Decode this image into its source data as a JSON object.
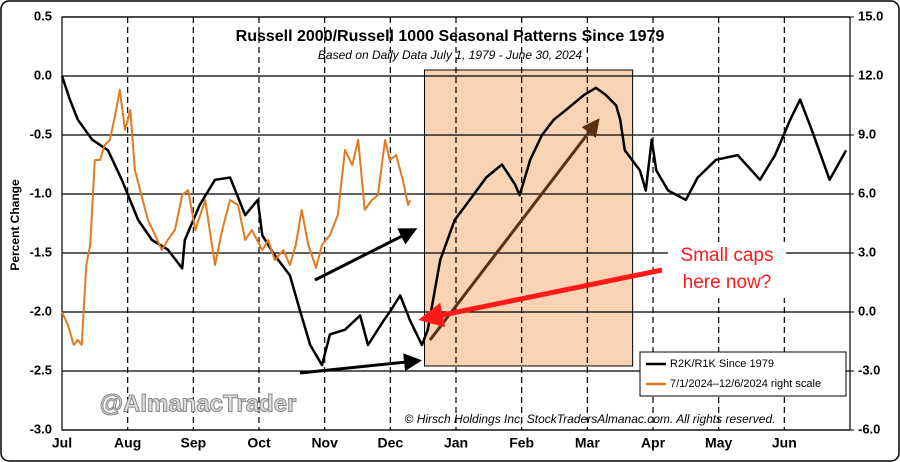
{
  "chart_data": {
    "type": "line",
    "title": "Russell 2000/Russell 1000 Seasonal Patterns Since 1979",
    "subtitle": "Based on Daily Data July 1, 1979 - June 30, 2024",
    "y_label": "Percent Change",
    "annotation": "Small caps here now?",
    "watermark": "@AlmanacTrader",
    "credit": "© Hirsch Holdings Inc, StockTradersAlmanac.com. All rights reserved.",
    "xlim": [
      0,
      12
    ],
    "xticks": [
      {
        "value": 0,
        "label": "Jul"
      },
      {
        "value": 1,
        "label": "Aug"
      },
      {
        "value": 2,
        "label": "Sep"
      },
      {
        "value": 3,
        "label": "Oct"
      },
      {
        "value": 4,
        "label": "Nov"
      },
      {
        "value": 5,
        "label": "Dec"
      },
      {
        "value": 6,
        "label": "Jan"
      },
      {
        "value": 7,
        "label": "Feb"
      },
      {
        "value": 8,
        "label": "Mar"
      },
      {
        "value": 9,
        "label": "Apr"
      },
      {
        "value": 10,
        "label": "May"
      },
      {
        "value": 11,
        "label": "Jun"
      }
    ],
    "ylim": [
      -3.0,
      0.5
    ],
    "yticks": [
      0.5,
      {
        "value": 0,
        "label": "0.0"
      },
      -0.5,
      {
        "value": -1,
        "label": "-1.0"
      },
      -1.5,
      {
        "value": -2,
        "label": "-2.0"
      },
      -2.5,
      {
        "value": -3,
        "label": "-3.0"
      }
    ],
    "y2lim": [
      -6.0,
      15.0
    ],
    "y2ticks": [
      {
        "value": 15,
        "label": "15.0"
      },
      {
        "value": 12,
        "label": "12.0"
      },
      {
        "value": 9,
        "label": "9.0"
      },
      {
        "value": 6,
        "label": "6.0"
      },
      {
        "value": 3,
        "label": "3.0"
      },
      {
        "value": 0,
        "label": "0.0"
      },
      {
        "value": -3,
        "label": "-3.0"
      },
      {
        "value": -6,
        "label": "-6.0"
      }
    ],
    "shaded_x": [
      5.52,
      8.69
    ],
    "grid": true,
    "legend": "lower right",
    "series": [
      {
        "name": "R2K/R1K Since 1979",
        "color": "#000000",
        "axis": "y",
        "x": [
          0,
          0.12,
          0.24,
          0.46,
          0.7,
          0.91,
          1.16,
          1.37,
          1.61,
          1.83,
          1.87,
          2.1,
          2.33,
          2.56,
          2.79,
          2.98,
          3.05,
          3.24,
          3.47,
          3.62,
          3.78,
          3.96,
          4.08,
          4.31,
          4.54,
          4.66,
          4.9,
          4.99,
          5.15,
          5.3,
          5.48,
          5.57,
          5.76,
          5.98,
          6.21,
          6.46,
          6.7,
          6.9,
          6.97,
          7.13,
          7.31,
          7.49,
          7.67,
          7.95,
          8.13,
          8.28,
          8.44,
          8.5,
          8.57,
          8.8,
          8.89,
          8.98,
          9.05,
          9.23,
          9.5,
          9.68,
          9.96,
          10.29,
          10.63,
          10.86,
          11.09,
          11.24,
          11.42,
          11.69,
          11.94
        ],
        "values": [
          0,
          -0.2,
          -0.37,
          -0.54,
          -0.63,
          -0.88,
          -1.22,
          -1.39,
          -1.47,
          -1.63,
          -1.39,
          -1.09,
          -0.88,
          -0.86,
          -1.18,
          -1.05,
          -1.35,
          -1.52,
          -1.69,
          -1.98,
          -2.28,
          -2.45,
          -2.19,
          -2.15,
          -2.03,
          -2.28,
          -2.07,
          -2.0,
          -1.86,
          -2.07,
          -2.28,
          -2.15,
          -1.56,
          -1.22,
          -1.05,
          -0.86,
          -0.75,
          -0.92,
          -1.01,
          -0.71,
          -0.5,
          -0.37,
          -0.29,
          -0.16,
          -0.1,
          -0.16,
          -0.25,
          -0.37,
          -0.63,
          -0.8,
          -0.97,
          -0.54,
          -0.8,
          -0.97,
          -1.05,
          -0.86,
          -0.71,
          -0.67,
          -0.88,
          -0.67,
          -0.37,
          -0.2,
          -0.46,
          -0.88,
          -0.63
        ]
      },
      {
        "name": "7/1/2024–12/6/2024 right scale",
        "color": "#e07b20",
        "axis": "y2",
        "x": [
          0,
          0.09,
          0.18,
          0.24,
          0.3,
          0.37,
          0.43,
          0.5,
          0.58,
          0.65,
          0.73,
          0.81,
          0.88,
          0.96,
          1.04,
          1.11,
          1.19,
          1.31,
          1.42,
          1.52,
          1.61,
          1.72,
          1.83,
          1.92,
          2.03,
          2.18,
          2.33,
          2.44,
          2.56,
          2.68,
          2.79,
          2.89,
          3.05,
          3.14,
          3.24,
          3.37,
          3.47,
          3.56,
          3.65,
          3.75,
          3.87,
          3.96,
          4.08,
          4.2,
          4.31,
          4.42,
          4.51,
          4.61,
          4.72,
          4.81,
          4.92,
          4.99,
          5.09,
          5.19,
          5.27,
          5.3
        ],
        "values": [
          0,
          -0.66,
          -1.68,
          -1.42,
          -1.68,
          2.39,
          3.41,
          7.73,
          7.73,
          8.49,
          8.75,
          10.02,
          11.29,
          9.25,
          10.27,
          7.22,
          6.2,
          4.68,
          3.91,
          3.15,
          3.66,
          4.17,
          5.95,
          6.2,
          4.17,
          5.69,
          2.39,
          4.17,
          5.69,
          5.44,
          3.66,
          4.17,
          3.15,
          3.66,
          2.64,
          3.15,
          2.39,
          3.41,
          5.19,
          3.41,
          2.24,
          3.41,
          3.91,
          4.93,
          8.24,
          7.47,
          8.75,
          5.19,
          5.69,
          5.95,
          8.75,
          7.73,
          7.98,
          6.71,
          5.44,
          5.69
        ]
      }
    ]
  }
}
